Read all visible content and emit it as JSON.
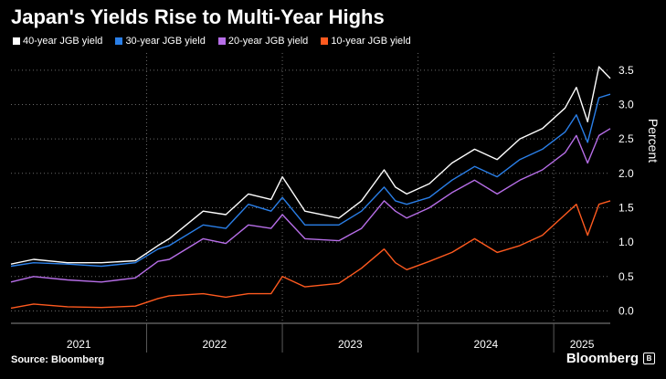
{
  "chart_data": {
    "type": "line",
    "title": "Japan's Yields Rise to Multi-Year Highs",
    "ylabel": "Percent",
    "xlabel": "",
    "y_ticks": [
      0.0,
      0.5,
      1.0,
      1.5,
      2.0,
      2.5,
      3.0,
      3.5
    ],
    "y_tick_labels": [
      "0.0",
      "0.5",
      "1.0",
      "1.5",
      "2.0",
      "2.5",
      "3.0",
      "3.5"
    ],
    "ylim": [
      -0.18,
      3.75
    ],
    "x_labels": [
      "2021",
      "2022",
      "2023",
      "2024",
      "2025"
    ],
    "x_range": [
      "2021-01",
      "2025-06"
    ],
    "grid": "horizontal dotted",
    "legend_position": "top-left",
    "series": [
      {
        "name": "40-year JGB yield",
        "color": "#ffffff",
        "x": [
          "2021-01",
          "2021-03",
          "2021-06",
          "2021-09",
          "2021-12",
          "2022-02",
          "2022-03",
          "2022-06",
          "2022-08",
          "2022-10",
          "2022-12",
          "2023-01",
          "2023-03",
          "2023-06",
          "2023-08",
          "2023-10",
          "2023-11",
          "2023-12",
          "2024-02",
          "2024-04",
          "2024-06",
          "2024-08",
          "2024-10",
          "2024-12",
          "2025-02",
          "2025-03",
          "2025-04",
          "2025-05",
          "2025-06"
        ],
        "values": [
          0.68,
          0.75,
          0.7,
          0.7,
          0.73,
          0.95,
          1.05,
          1.45,
          1.4,
          1.7,
          1.62,
          1.95,
          1.45,
          1.35,
          1.6,
          2.05,
          1.8,
          1.7,
          1.85,
          2.15,
          2.35,
          2.2,
          2.5,
          2.65,
          2.95,
          3.25,
          2.75,
          3.55,
          3.38
        ]
      },
      {
        "name": "30-year JGB yield",
        "color": "#2a7fe8",
        "x": [
          "2021-01",
          "2021-03",
          "2021-06",
          "2021-09",
          "2021-12",
          "2022-02",
          "2022-03",
          "2022-06",
          "2022-08",
          "2022-10",
          "2022-12",
          "2023-01",
          "2023-03",
          "2023-06",
          "2023-08",
          "2023-10",
          "2023-11",
          "2023-12",
          "2024-02",
          "2024-04",
          "2024-06",
          "2024-08",
          "2024-10",
          "2024-12",
          "2025-02",
          "2025-03",
          "2025-04",
          "2025-05",
          "2025-06"
        ],
        "values": [
          0.65,
          0.7,
          0.68,
          0.65,
          0.7,
          0.9,
          0.95,
          1.25,
          1.2,
          1.55,
          1.45,
          1.65,
          1.25,
          1.25,
          1.45,
          1.8,
          1.6,
          1.55,
          1.65,
          1.9,
          2.1,
          1.95,
          2.2,
          2.35,
          2.6,
          2.85,
          2.45,
          3.1,
          3.15
        ]
      },
      {
        "name": "20-year JGB yield",
        "color": "#b76ee8",
        "x": [
          "2021-01",
          "2021-03",
          "2021-06",
          "2021-09",
          "2021-12",
          "2022-02",
          "2022-03",
          "2022-06",
          "2022-08",
          "2022-10",
          "2022-12",
          "2023-01",
          "2023-03",
          "2023-06",
          "2023-08",
          "2023-10",
          "2023-11",
          "2023-12",
          "2024-02",
          "2024-04",
          "2024-06",
          "2024-08",
          "2024-10",
          "2024-12",
          "2025-02",
          "2025-03",
          "2025-04",
          "2025-05",
          "2025-06"
        ],
        "values": [
          0.42,
          0.5,
          0.45,
          0.42,
          0.48,
          0.72,
          0.75,
          1.05,
          0.98,
          1.25,
          1.2,
          1.4,
          1.05,
          1.02,
          1.2,
          1.6,
          1.45,
          1.35,
          1.5,
          1.72,
          1.9,
          1.7,
          1.9,
          2.05,
          2.3,
          2.55,
          2.15,
          2.55,
          2.65
        ]
      },
      {
        "name": "10-year JGB yield",
        "color": "#ff5a1f",
        "x": [
          "2021-01",
          "2021-03",
          "2021-06",
          "2021-09",
          "2021-12",
          "2022-02",
          "2022-03",
          "2022-06",
          "2022-08",
          "2022-10",
          "2022-12",
          "2023-01",
          "2023-03",
          "2023-06",
          "2023-08",
          "2023-10",
          "2023-11",
          "2023-12",
          "2024-02",
          "2024-04",
          "2024-06",
          "2024-08",
          "2024-10",
          "2024-12",
          "2025-02",
          "2025-03",
          "2025-04",
          "2025-05",
          "2025-06"
        ],
        "values": [
          0.04,
          0.1,
          0.06,
          0.05,
          0.07,
          0.18,
          0.22,
          0.25,
          0.2,
          0.25,
          0.25,
          0.5,
          0.35,
          0.4,
          0.62,
          0.9,
          0.7,
          0.6,
          0.72,
          0.85,
          1.05,
          0.85,
          0.95,
          1.1,
          1.4,
          1.55,
          1.1,
          1.55,
          1.6
        ]
      }
    ]
  },
  "footer": {
    "source": "Source: Bloomberg",
    "brand": "Bloomberg",
    "brand_badge": "B"
  },
  "colors": {
    "background": "#000000",
    "text": "#ffffff",
    "grid": "#6a6a6a"
  }
}
